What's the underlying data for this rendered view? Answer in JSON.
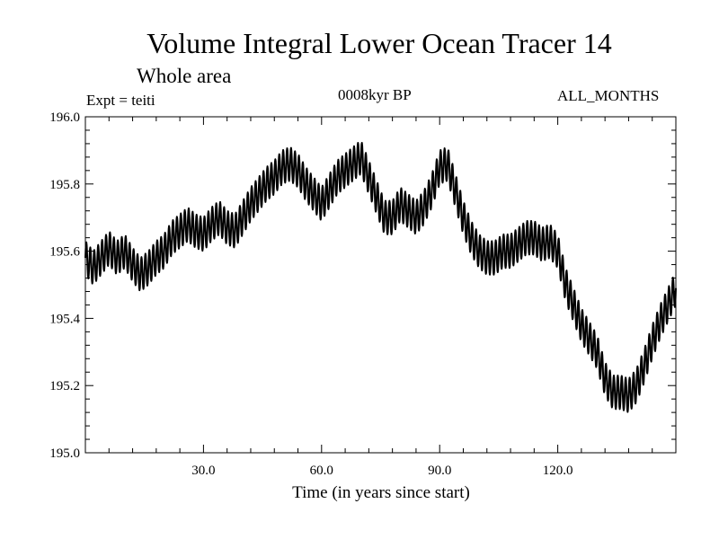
{
  "title": "Volume Integral Lower Ocean Tracer 14",
  "subtitle": "Whole area",
  "expt_label": "Expt = teiti",
  "period_label": "0008kyr BP",
  "months_label": "ALL_MONTHS",
  "chart_data": {
    "type": "line",
    "title": "Volume Integral Lower Ocean Tracer 14",
    "subtitle": "Whole area",
    "xlabel": "Time (in years since start)",
    "ylabel": "",
    "xlim": [
      0,
      150
    ],
    "ylim": [
      195.0,
      196.0
    ],
    "xticks": [
      30,
      60,
      90,
      120
    ],
    "xtick_labels": [
      "30.0",
      "60.0",
      "90.0",
      "120.0"
    ],
    "yticks": [
      195.0,
      195.2,
      195.4,
      195.6,
      195.8,
      196.0
    ],
    "ytick_labels": [
      "195.0",
      "195.2",
      "195.4",
      "195.6",
      "195.8",
      "196.0"
    ],
    "grid": false,
    "line_color": "#000000",
    "series": [
      {
        "name": "Lower Ocean Tracer 14",
        "x": [
          0,
          2,
          4,
          6,
          8,
          10,
          12,
          14,
          16,
          18,
          20,
          22,
          24,
          26,
          28,
          30,
          32,
          34,
          36,
          38,
          40,
          42,
          44,
          46,
          48,
          50,
          52,
          54,
          56,
          58,
          60,
          62,
          64,
          66,
          68,
          70,
          72,
          74,
          76,
          78,
          80,
          82,
          84,
          86,
          88,
          90,
          92,
          94,
          96,
          98,
          100,
          102,
          104,
          106,
          108,
          110,
          112,
          114,
          116,
          118,
          120,
          122,
          124,
          126,
          128,
          130,
          132,
          134,
          136,
          138,
          140,
          142,
          144,
          146,
          148,
          150
        ],
        "values": [
          195.58,
          195.55,
          195.58,
          195.61,
          195.58,
          195.6,
          195.56,
          195.53,
          195.55,
          195.58,
          195.6,
          195.64,
          195.66,
          195.68,
          195.66,
          195.65,
          195.68,
          195.7,
          195.67,
          195.66,
          195.7,
          195.74,
          195.77,
          195.8,
          195.82,
          195.85,
          195.86,
          195.84,
          195.8,
          195.77,
          195.74,
          195.78,
          195.82,
          195.84,
          195.86,
          195.88,
          195.82,
          195.76,
          195.7,
          195.7,
          195.74,
          195.72,
          195.7,
          195.73,
          195.78,
          195.85,
          195.86,
          195.78,
          195.7,
          195.64,
          195.6,
          195.58,
          195.58,
          195.6,
          195.6,
          195.62,
          195.64,
          195.64,
          195.62,
          195.63,
          195.6,
          195.5,
          195.44,
          195.38,
          195.34,
          195.3,
          195.22,
          195.18,
          195.18,
          195.17,
          195.2,
          195.26,
          195.33,
          195.39,
          195.44,
          195.49
        ]
      }
    ]
  }
}
